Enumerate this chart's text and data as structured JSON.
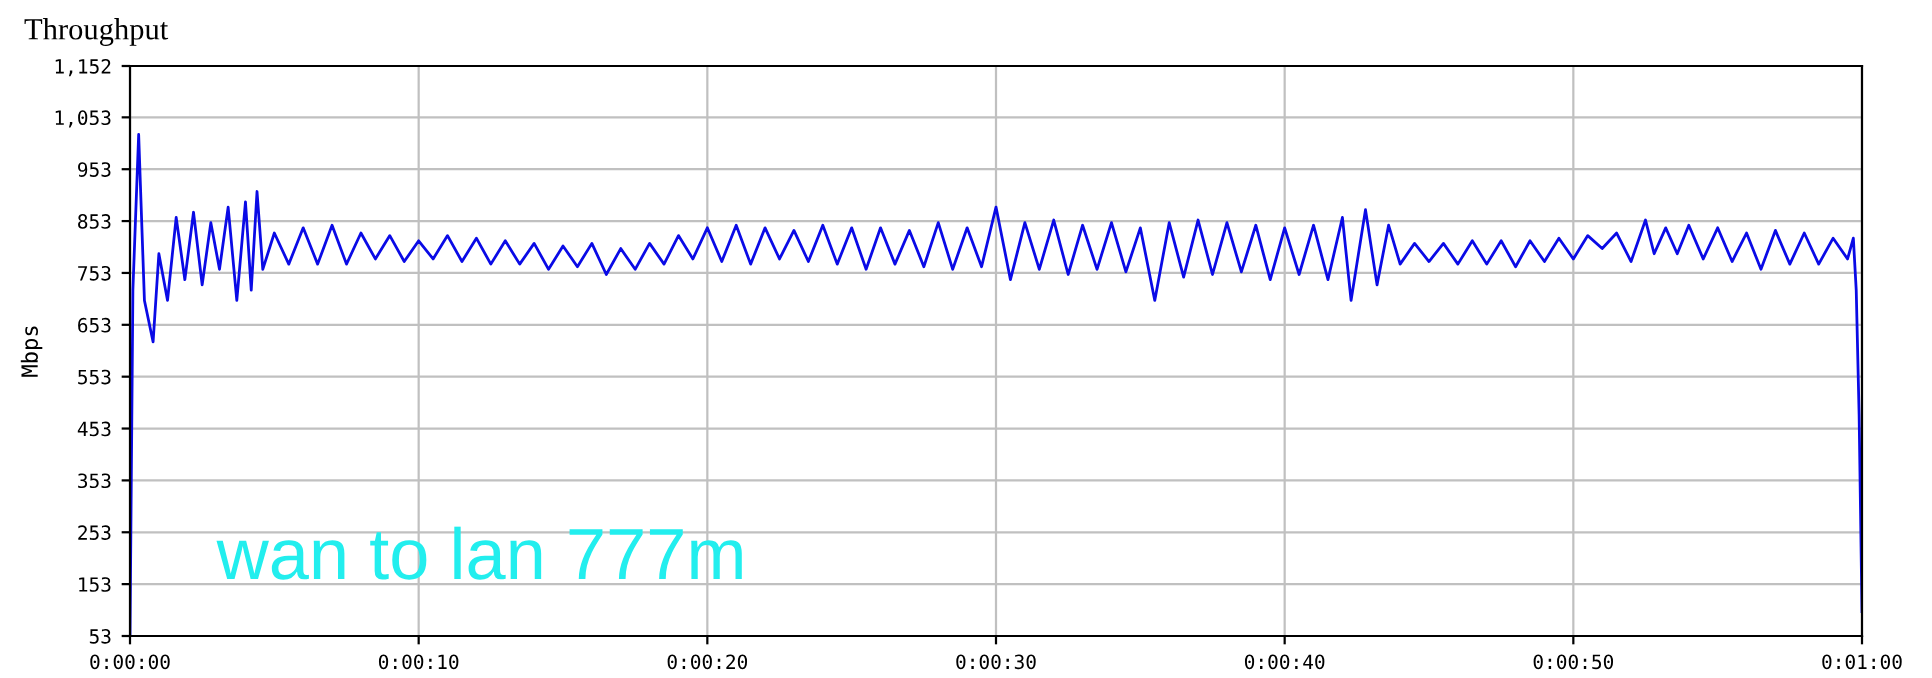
{
  "chart_data": {
    "type": "line",
    "title": "Throughput",
    "ylabel": "Mbps",
    "annotations": [
      "wan to lan 777m"
    ],
    "x": [
      0,
      0.1,
      0.3,
      0.5,
      0.8,
      1.0,
      1.3,
      1.6,
      1.9,
      2.2,
      2.5,
      2.8,
      3.1,
      3.4,
      3.7,
      4.0,
      4.2,
      4.4,
      4.6,
      5.0,
      5.5,
      6.0,
      6.5,
      7.0,
      7.5,
      8.0,
      8.5,
      9.0,
      9.5,
      10,
      10.5,
      11,
      11.5,
      12,
      12.5,
      13,
      13.5,
      14,
      14.5,
      15,
      15.5,
      16,
      16.5,
      17,
      17.5,
      18,
      18.5,
      19,
      19.5,
      20,
      20.5,
      21,
      21.5,
      22,
      22.5,
      23,
      23.5,
      24,
      24.5,
      25,
      25.5,
      26,
      26.5,
      27,
      27.5,
      28,
      28.5,
      29,
      29.5,
      30,
      30.5,
      31,
      31.5,
      32,
      32.5,
      33,
      33.5,
      34,
      34.5,
      35,
      35.5,
      36,
      36.5,
      37,
      37.5,
      38,
      38.5,
      39,
      39.5,
      40,
      40.5,
      41,
      41.5,
      42,
      42.3,
      42.8,
      43.2,
      43.6,
      44,
      44.5,
      45,
      45.5,
      46,
      46.5,
      47,
      47.5,
      48,
      48.5,
      49,
      49.5,
      50,
      50.5,
      51,
      51.5,
      52,
      52.5,
      52.8,
      53.2,
      53.6,
      54,
      54.5,
      55,
      55.5,
      56,
      56.5,
      57,
      57.5,
      58,
      58.5,
      59,
      59.5,
      59.7,
      59.8,
      59.9,
      60
    ],
    "series": [
      {
        "color": "#0a0ae6",
        "values": [
          53,
          720,
          1020,
          700,
          620,
          790,
          700,
          860,
          740,
          870,
          730,
          850,
          760,
          880,
          700,
          890,
          720,
          910,
          760,
          830,
          770,
          840,
          770,
          845,
          770,
          830,
          780,
          825,
          775,
          815,
          780,
          825,
          775,
          820,
          770,
          815,
          770,
          810,
          760,
          805,
          765,
          810,
          750,
          800,
          760,
          810,
          770,
          825,
          780,
          840,
          775,
          845,
          770,
          840,
          780,
          835,
          775,
          845,
          770,
          840,
          760,
          840,
          770,
          835,
          765,
          850,
          760,
          840,
          765,
          880,
          740,
          850,
          760,
          855,
          750,
          845,
          760,
          850,
          755,
          840,
          700,
          850,
          745,
          855,
          750,
          850,
          755,
          845,
          740,
          840,
          750,
          845,
          740,
          860,
          700,
          875,
          730,
          845,
          770,
          810,
          775,
          810,
          770,
          815,
          770,
          815,
          765,
          815,
          775,
          820,
          780,
          825,
          800,
          830,
          775,
          855,
          790,
          840,
          790,
          845,
          780,
          840,
          775,
          830,
          760,
          835,
          770,
          830,
          770,
          820,
          780,
          820,
          720,
          480,
          100
        ]
      }
    ],
    "xlim": [
      0,
      60
    ],
    "xticks": [
      {
        "value": 0,
        "label": "0:00:00"
      },
      {
        "value": 10,
        "label": "0:00:10"
      },
      {
        "value": 20,
        "label": "0:00:20"
      },
      {
        "value": 30,
        "label": "0:00:30"
      },
      {
        "value": 40,
        "label": "0:00:40"
      },
      {
        "value": 50,
        "label": "0:00:50"
      },
      {
        "value": 60,
        "label": "0:01:00"
      }
    ],
    "ylim": [
      53,
      1152
    ],
    "yticks": [
      53,
      153,
      253,
      353,
      453,
      553,
      653,
      753,
      853,
      953,
      {
        "value": 1053,
        "label": "1,053"
      },
      {
        "value": 1152,
        "label": "1,152"
      }
    ],
    "grid": true,
    "marker": "none",
    "line_style": "solid"
  }
}
